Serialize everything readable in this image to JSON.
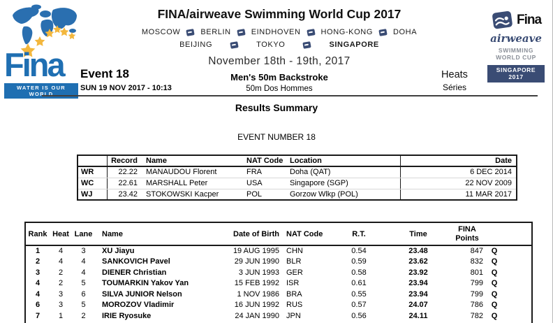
{
  "header": {
    "title": "FINA/airweave Swimming World Cup 2017",
    "cities_line1": [
      "MOSCOW",
      "BERLIN",
      "EINDHOVEN",
      "HONG-KONG",
      "DOHA"
    ],
    "cities_line2": [
      "BEIJING",
      "TOKYO",
      "SINGAPORE"
    ],
    "date_range": "November 18th - 19th, 2017",
    "event_title_en": "Men's 50m Backstroke",
    "event_title_fr": "50m Dos Hommes",
    "round_en": "Heats",
    "round_fr": "Séries",
    "event_label": "Event 18",
    "session_datetime": "SUN 19 NOV 2017 - 10:13",
    "fina_logo": {
      "wordmark": "Fina",
      "tagline": "WATER IS OUR WORLD"
    },
    "airweave_logo": {
      "fina": "Fina",
      "airweave": "airweave",
      "line1": "SWIMMING",
      "line2": "WORLD CUP",
      "badge": "SINGAPORE 2017"
    }
  },
  "section": {
    "results_summary": "Results Summary",
    "event_number": "EVENT NUMBER 18"
  },
  "records_table": {
    "headers": {
      "code": "",
      "record": "Record",
      "name": "Name",
      "nat": "NAT Code",
      "location": "Location",
      "date": "Date"
    },
    "rows": [
      {
        "code": "WR",
        "record": "22.22",
        "name": "MANAUDOU Florent",
        "nat": "FRA",
        "location": "Doha (QAT)",
        "date": "6 DEC 2014"
      },
      {
        "code": "WC",
        "record": "22.61",
        "name": "MARSHALL Peter",
        "nat": "USA",
        "location": "Singapore (SGP)",
        "date": "22 NOV 2009"
      },
      {
        "code": "WJ",
        "record": "23.42",
        "name": "STOKOWSKI Kacper",
        "nat": "POL",
        "location": "Gorzow Wlkp (POL)",
        "date": "11 MAR 2017"
      }
    ]
  },
  "results_table": {
    "headers": {
      "rank": "Rank",
      "heat": "Heat",
      "lane": "Lane",
      "name": "Name",
      "dob": "Date of Birth",
      "nat": "NAT Code",
      "rt": "R.T.",
      "time": "Time",
      "points_line1": "FINA",
      "points_line2": "Points"
    },
    "rows": [
      {
        "rank": "1",
        "heat": "4",
        "lane": "3",
        "name": "XU Jiayu",
        "dob": "19 AUG 1995",
        "nat": "CHN",
        "rt": "0.54",
        "time": "23.48",
        "points": "847",
        "q": "Q"
      },
      {
        "rank": "2",
        "heat": "4",
        "lane": "4",
        "name": "SANKOVICH Pavel",
        "dob": "29 JUN 1990",
        "nat": "BLR",
        "rt": "0.59",
        "time": "23.62",
        "points": "832",
        "q": "Q"
      },
      {
        "rank": "3",
        "heat": "2",
        "lane": "4",
        "name": "DIENER Christian",
        "dob": "3 JUN 1993",
        "nat": "GER",
        "rt": "0.58",
        "time": "23.92",
        "points": "801",
        "q": "Q"
      },
      {
        "rank": "4",
        "heat": "2",
        "lane": "5",
        "name": "TOUMARKIN Yakov Yan",
        "dob": "15 FEB 1992",
        "nat": "ISR",
        "rt": "0.61",
        "time": "23.94",
        "points": "799",
        "q": "Q"
      },
      {
        "rank": "4",
        "heat": "3",
        "lane": "6",
        "name": "SILVA JUNIOR Nelson",
        "dob": "1 NOV 1986",
        "nat": "BRA",
        "rt": "0.55",
        "time": "23.94",
        "points": "799",
        "q": "Q"
      },
      {
        "rank": "6",
        "heat": "3",
        "lane": "5",
        "name": "MOROZOV Vladimir",
        "dob": "16 JUN 1992",
        "nat": "RUS",
        "rt": "0.57",
        "time": "24.07",
        "points": "786",
        "q": "Q"
      },
      {
        "rank": "7",
        "heat": "1",
        "lane": "2",
        "name": "IRIE Ryosuke",
        "dob": "24 JAN 1990",
        "nat": "JPN",
        "rt": "0.56",
        "time": "24.11",
        "points": "782",
        "q": "Q"
      }
    ],
    "clipped_row_visible": true
  },
  "colors": {
    "fina_blue": "#1F6FB2",
    "map_blue": "#2A6FB0",
    "navy": "#3A4C74",
    "star_gold": "#F3B73D",
    "rule_gray": "#3F3F3F",
    "muted_gray": "#8A8F98"
  }
}
